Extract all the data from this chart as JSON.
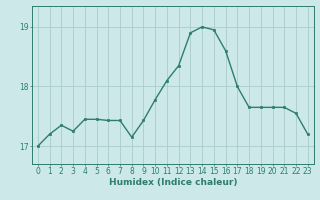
{
  "x": [
    0,
    1,
    2,
    3,
    4,
    5,
    6,
    7,
    8,
    9,
    10,
    11,
    12,
    13,
    14,
    15,
    16,
    17,
    18,
    19,
    20,
    21,
    22,
    23
  ],
  "y": [
    17.0,
    17.2,
    17.35,
    17.25,
    17.45,
    17.45,
    17.43,
    17.43,
    17.15,
    17.43,
    17.78,
    18.1,
    18.35,
    18.9,
    19.0,
    18.95,
    18.6,
    18.0,
    17.65,
    17.65,
    17.65,
    17.65,
    17.55,
    17.2
  ],
  "line_color": "#2e7d6e",
  "marker": "s",
  "marker_size": 2.0,
  "bg_color": "#cce8e8",
  "grid_color": "#aacccc",
  "axis_color": "#2e7d6e",
  "xlabel": "Humidex (Indice chaleur)",
  "ylim": [
    16.7,
    19.35
  ],
  "yticks": [
    17,
    18,
    19
  ],
  "xticks": [
    0,
    1,
    2,
    3,
    4,
    5,
    6,
    7,
    8,
    9,
    10,
    11,
    12,
    13,
    14,
    15,
    16,
    17,
    18,
    19,
    20,
    21,
    22,
    23
  ],
  "xlabel_fontsize": 6.5,
  "tick_fontsize": 5.5,
  "linewidth": 1.0
}
